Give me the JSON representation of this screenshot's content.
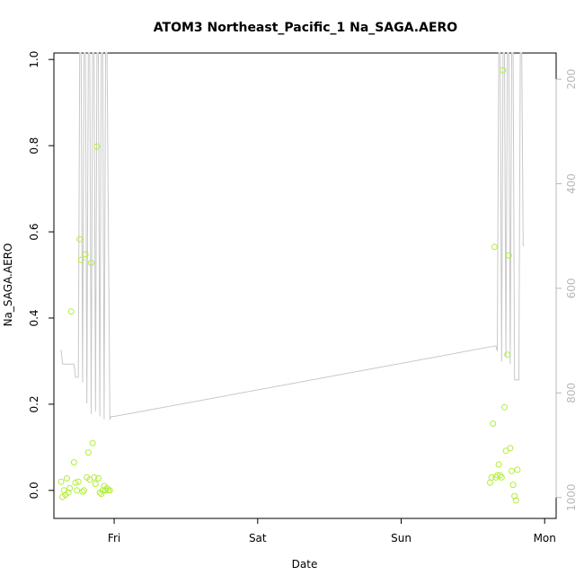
{
  "chart_data": {
    "type": "scatter",
    "title": "ATOM3 Northeast_Pacific_1 Na_SAGA.AERO",
    "xlabel": "Date",
    "ylabel": "Na_SAGA.AERO",
    "ylim": [
      -0.065,
      1.015
    ],
    "y_ticks": [
      "0.0",
      "0.2",
      "0.4",
      "0.6",
      "0.8",
      "1.0"
    ],
    "y2_ticks": [
      "200",
      "400",
      "600",
      "800",
      "1000"
    ],
    "y2lim": [
      1040,
      150
    ],
    "y2_reversed": true,
    "x_ticks": [
      "Fri",
      "Sat",
      "Sun",
      "Mon"
    ],
    "xlim_days": [
      -0.42,
      3.08
    ],
    "grid": false,
    "legend": "none",
    "colors": {
      "points": "#b3ee3a",
      "pressure_line": "#c8c8c8",
      "axis": "#000000",
      "right_axis": "#b8b8b8"
    },
    "series": [
      {
        "kind": "points",
        "x_days": [
          -0.37,
          -0.36,
          -0.35,
          -0.34,
          -0.33,
          -0.32,
          -0.31,
          -0.3,
          -0.28,
          -0.27,
          -0.26,
          -0.25,
          -0.24,
          -0.23,
          -0.22,
          -0.21,
          -0.2,
          -0.19,
          -0.18,
          -0.17,
          -0.16,
          -0.15,
          -0.14,
          -0.13,
          -0.12,
          -0.11,
          -0.1,
          -0.09,
          -0.08,
          -0.07,
          -0.06,
          -0.05,
          -0.04,
          -0.03,
          2.62,
          2.63,
          2.64,
          2.65,
          2.66,
          2.67,
          2.68,
          2.69,
          2.7,
          2.71,
          2.72,
          2.73,
          2.74,
          2.75,
          2.76,
          2.77,
          2.78,
          2.79,
          2.8,
          2.81
        ],
        "y": [
          0.02,
          -0.015,
          0.0,
          -0.01,
          0.028,
          -0.005,
          0.005,
          0.415,
          0.065,
          0.018,
          0.0,
          0.02,
          0.583,
          0.535,
          -0.003,
          0.0,
          0.548,
          0.03,
          0.088,
          0.025,
          0.528,
          0.11,
          0.03,
          0.015,
          0.798,
          0.028,
          -0.005,
          -0.008,
          0.0,
          0.01,
          0.0,
          0.005,
          0.0,
          0.0,
          0.018,
          0.03,
          0.155,
          0.565,
          0.03,
          0.035,
          0.06,
          0.035,
          0.03,
          0.975,
          0.193,
          0.092,
          0.315,
          0.545,
          0.098,
          0.045,
          0.013,
          -0.013,
          -0.023,
          0.048
        ]
      },
      {
        "kind": "line",
        "axis": "right",
        "x_days": [
          -0.37,
          -0.36,
          -0.32,
          -0.28,
          -0.27,
          -0.25,
          -0.24,
          -0.23,
          -0.22,
          -0.21,
          -0.2,
          -0.19,
          -0.18,
          -0.17,
          -0.16,
          -0.15,
          -0.14,
          -0.13,
          -0.12,
          -0.11,
          -0.1,
          -0.09,
          -0.08,
          -0.07,
          -0.06,
          -0.05,
          -0.03,
          -0.02,
          0.0,
          2.66,
          2.67,
          2.68,
          2.69,
          2.7,
          2.71,
          2.72,
          2.73,
          2.74,
          2.75,
          2.76,
          2.77,
          2.78,
          2.79,
          2.8,
          2.81,
          2.82,
          2.83,
          2.84,
          2.85
        ],
        "y": [
          718,
          745,
          745,
          745,
          770,
          770,
          150,
          150,
          780,
          150,
          150,
          820,
          150,
          150,
          840,
          150,
          150,
          835,
          150,
          150,
          845,
          150,
          150,
          850,
          150,
          150,
          850,
          845,
          845,
          710,
          720,
          150,
          150,
          740,
          150,
          150,
          730,
          150,
          150,
          745,
          150,
          150,
          775,
          775,
          775,
          775,
          150,
          150,
          520
        ]
      }
    ]
  }
}
